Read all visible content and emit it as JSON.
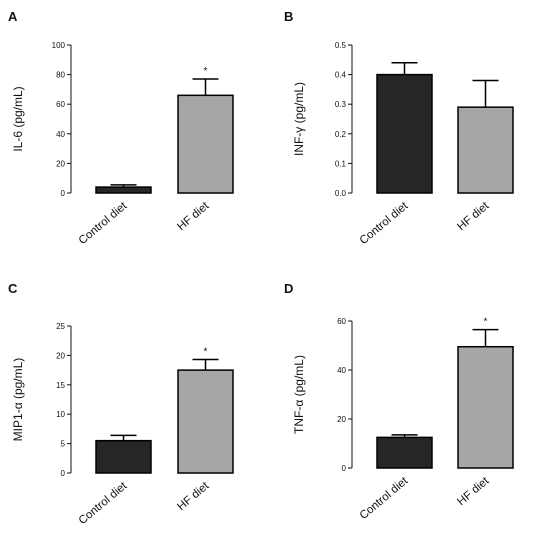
{
  "colors": {
    "control_bar": "#262626",
    "hf_bar": "#a6a6a6",
    "axis": "#111111",
    "bar_edge": "#000000"
  },
  "chart_data": [
    {
      "type": "bar",
      "panel": "A",
      "ylabel": "IL-6 (pg/mL)",
      "categories": [
        "Control diet",
        "HF diet"
      ],
      "values": [
        4,
        66
      ],
      "errors": [
        1.5,
        11
      ],
      "significance": [
        "",
        "*"
      ],
      "ylim": [
        0,
        100
      ],
      "yticks": [
        0,
        20,
        40,
        60,
        80,
        100
      ],
      "ytick_labels": [
        "0",
        "20",
        "40",
        "60",
        "80",
        "100"
      ],
      "grid": false
    },
    {
      "type": "bar",
      "panel": "B",
      "ylabel": "INF-γ (pg/mL)",
      "categories": [
        "Control diet",
        "HF diet"
      ],
      "values": [
        0.4,
        0.29
      ],
      "errors": [
        0.04,
        0.09
      ],
      "significance": [
        "",
        ""
      ],
      "ylim": [
        0,
        0.5
      ],
      "yticks": [
        0,
        0.1,
        0.2,
        0.3,
        0.4,
        0.5
      ],
      "ytick_labels": [
        "0.0",
        "0.1",
        "0.2",
        "0.3",
        "0.4",
        "0.5"
      ],
      "grid": false
    },
    {
      "type": "bar",
      "panel": "C",
      "ylabel": "MIP1-α (pg/mL)",
      "categories": [
        "Control diet",
        "HF diet"
      ],
      "values": [
        5.5,
        17.5
      ],
      "errors": [
        0.9,
        1.8
      ],
      "significance": [
        "",
        "*"
      ],
      "ylim": [
        0,
        25
      ],
      "yticks": [
        0,
        5,
        10,
        15,
        20,
        25
      ],
      "ytick_labels": [
        "0",
        "5",
        "10",
        "15",
        "20",
        "25"
      ],
      "grid": false
    },
    {
      "type": "bar",
      "panel": "D",
      "ylabel": "TNF-α (pg/mL)",
      "categories": [
        "Control diet",
        "HF diet"
      ],
      "values": [
        12.5,
        49.5
      ],
      "errors": [
        1.0,
        7.0
      ],
      "significance": [
        "",
        "*"
      ],
      "ylim": [
        0,
        60
      ],
      "yticks": [
        0,
        20,
        40,
        60
      ],
      "ytick_labels": [
        "0",
        "20",
        "40",
        "60"
      ],
      "grid": false
    }
  ]
}
